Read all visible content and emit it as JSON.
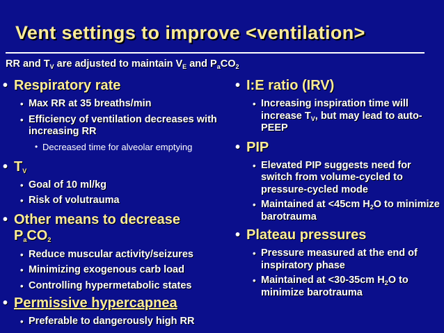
{
  "slide": {
    "title": "Vent settings to improve <ventilation>",
    "intro": {
      "text_a": "RR and T",
      "sub_a": "V",
      "text_b": " are adjusted to maintain V",
      "sub_b": "E",
      "text_c": " and P",
      "sub_c": "a",
      "text_d": "CO",
      "sub_d": "2"
    },
    "bullet": "•",
    "left": {
      "resp_rate": {
        "heading": "Respiratory rate",
        "item1": "Max RR at 35 breaths/min",
        "item2": "Efficiency of ventilation decreases with increasing RR",
        "sub1": "Decreased time for alveolar emptying"
      },
      "tv": {
        "heading": "T",
        "heading_sub": "V",
        "item1": "Goal of 10 ml/kg",
        "item2": "Risk of volutrauma"
      },
      "other": {
        "heading_line1": "Other means to decrease",
        "heading_p": "P",
        "heading_sub_a": "a",
        "heading_co": "CO",
        "heading_sub_2": "2",
        "item1": "Reduce muscular activity/seizures",
        "item2": "Minimizing exogenous carb load",
        "item3": "Controlling hypermetabolic states"
      },
      "permissive": {
        "heading": "Permissive hypercapnea",
        "item1": "Preferable to dangerously high RR"
      }
    },
    "right": {
      "ie": {
        "heading": "I:E ratio (IRV)",
        "item1_a": "Increasing inspiration time will increase T",
        "item1_sub": "V",
        "item1_b": ", but may lead to auto-PEEP"
      },
      "pip": {
        "heading": "PIP",
        "item1": "Elevated PIP suggests need for switch from volume-cycled to pressure-cycled mode",
        "item2_a": "Maintained at <45cm H",
        "item2_sub": "2",
        "item2_b": "O to minimize barotrauma"
      },
      "plateau": {
        "heading": "Plateau pressures",
        "item1": "Pressure measured at the end of inspiratory phase",
        "item2_a": "Maintained at <30-35cm H",
        "item2_sub": "2",
        "item2_b": "O to minimize barotrauma"
      }
    },
    "colors": {
      "background": "#0b0f8c",
      "heading": "#fcec9a",
      "text": "#ffffff"
    }
  }
}
